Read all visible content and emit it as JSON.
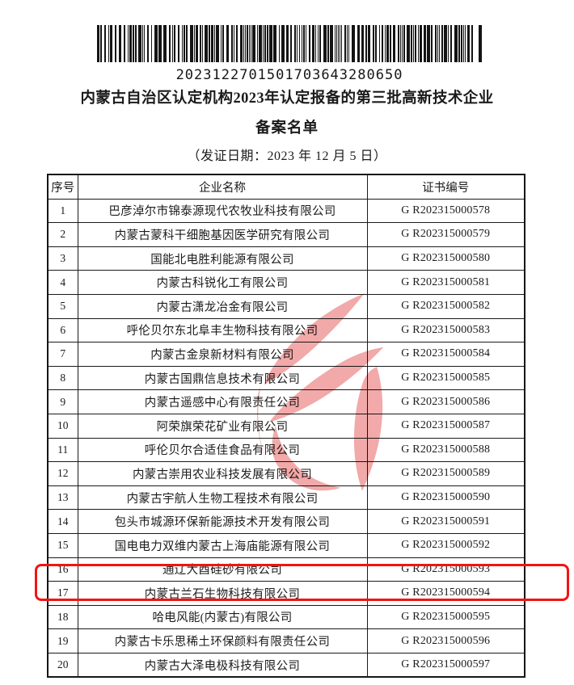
{
  "document": {
    "barcode_value": "2023122701501703643280650",
    "title_line1": "内蒙古自治区认定机构2023年认定报备的第三批高新技术企业",
    "title_line2": "备案名单",
    "issue_date_line": "（发证日期：2023 年 12 月 5 日）"
  },
  "table": {
    "headers": [
      "序号",
      "企业名称",
      "证书编号"
    ],
    "rows": [
      {
        "no": "1",
        "company": "巴彦淖尔市锦泰源现代农牧业科技有限公司",
        "cert": "G R202315000578"
      },
      {
        "no": "2",
        "company": "内蒙古蒙科干细胞基因医学研究有限公司",
        "cert": "G R202315000579"
      },
      {
        "no": "3",
        "company": "国能北电胜利能源有限公司",
        "cert": "G R202315000580"
      },
      {
        "no": "4",
        "company": "内蒙古科锐化工有限公司",
        "cert": "G R202315000581"
      },
      {
        "no": "5",
        "company": "内蒙古潇龙冶金有限公司",
        "cert": "G R202315000582"
      },
      {
        "no": "6",
        "company": "呼伦贝尔东北阜丰生物科技有限公司",
        "cert": "G R202315000583"
      },
      {
        "no": "7",
        "company": "内蒙古金泉新材料有限公司",
        "cert": "G R202315000584"
      },
      {
        "no": "8",
        "company": "内蒙古国鼎信息技术有限公司",
        "cert": "G R202315000585"
      },
      {
        "no": "9",
        "company": "内蒙古遥感中心有限责任公司",
        "cert": "G R202315000586"
      },
      {
        "no": "10",
        "company": "阿荣旗荣花矿业有限公司",
        "cert": "G R202315000587"
      },
      {
        "no": "11",
        "company": "呼伦贝尔合适佳食品有限公司",
        "cert": "G R202315000588"
      },
      {
        "no": "12",
        "company": "内蒙古崇用农业科技发展有限公司",
        "cert": "G R202315000589"
      },
      {
        "no": "13",
        "company": "内蒙古宇航人生物工程技术有限公司",
        "cert": "G R202315000590"
      },
      {
        "no": "14",
        "company": "包头市城源环保新能源技术开发有限公司",
        "cert": "G R202315000591"
      },
      {
        "no": "15",
        "company": "国电电力双维内蒙古上海庙能源有限公司",
        "cert": "G R202315000592"
      },
      {
        "no": "16",
        "company": "通辽大酉硅砂有限公司",
        "cert": "G R202315000593"
      },
      {
        "no": "17",
        "company": "内蒙古兰石生物科技有限公司",
        "cert": "G R202315000594"
      },
      {
        "no": "18",
        "company": "哈电风能(内蒙古)有限公司",
        "cert": "G R202315000595"
      },
      {
        "no": "19",
        "company": "内蒙古卡乐思稀土环保颜料有限责任公司",
        "cert": "G R202315000596"
      },
      {
        "no": "20",
        "company": "内蒙古大泽电极科技有限公司",
        "cert": "G R202315000597"
      }
    ],
    "highlighted_row_no": "16"
  },
  "colors": {
    "highlight_box_border": "#f21414",
    "watermark_red": "#f09a9a",
    "text": "#1b1b1b",
    "barcode_bars": "#141414"
  }
}
